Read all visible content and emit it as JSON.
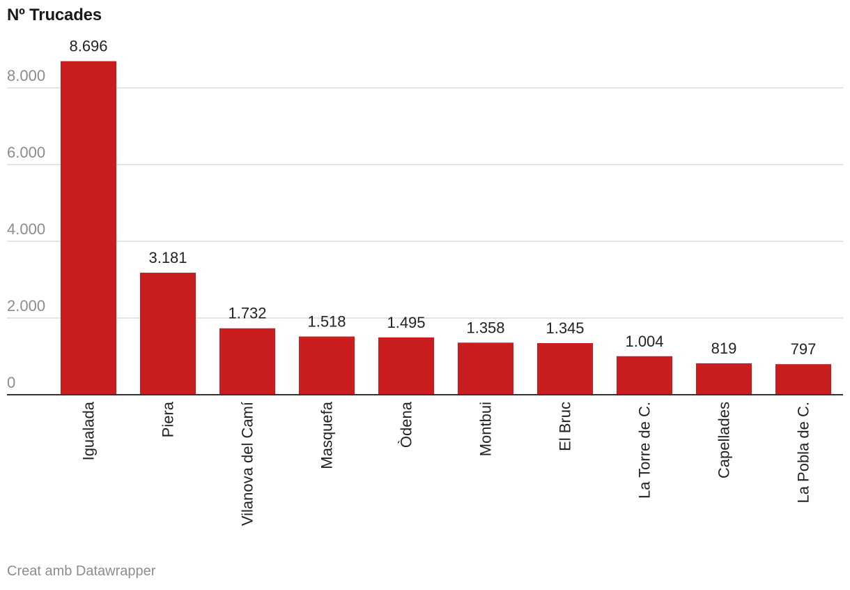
{
  "chart_data": {
    "type": "bar",
    "title": "Nº Trucades",
    "categories": [
      "Igualada",
      "Piera",
      "Vilanova del Camí",
      "Masquefa",
      "Òdena",
      "Montbui",
      "El Bruc",
      "La Torre de C.",
      "Capellades",
      "La Pobla de C."
    ],
    "values": [
      8696,
      3181,
      1732,
      1518,
      1495,
      1358,
      1345,
      1004,
      819,
      797
    ],
    "value_labels": [
      "8.696",
      "3.181",
      "1.732",
      "1.518",
      "1.495",
      "1.358",
      "1.345",
      "1.004",
      "819",
      "797"
    ],
    "y_ticks": [
      0,
      2000,
      4000,
      6000,
      8000
    ],
    "y_tick_labels": [
      "0",
      "2.000",
      "4.000",
      "6.000",
      "8.000"
    ],
    "ylim": [
      0,
      8696
    ],
    "grid": true,
    "bar_color": "#c91d1f"
  },
  "credit": "Creat amb Datawrapper"
}
